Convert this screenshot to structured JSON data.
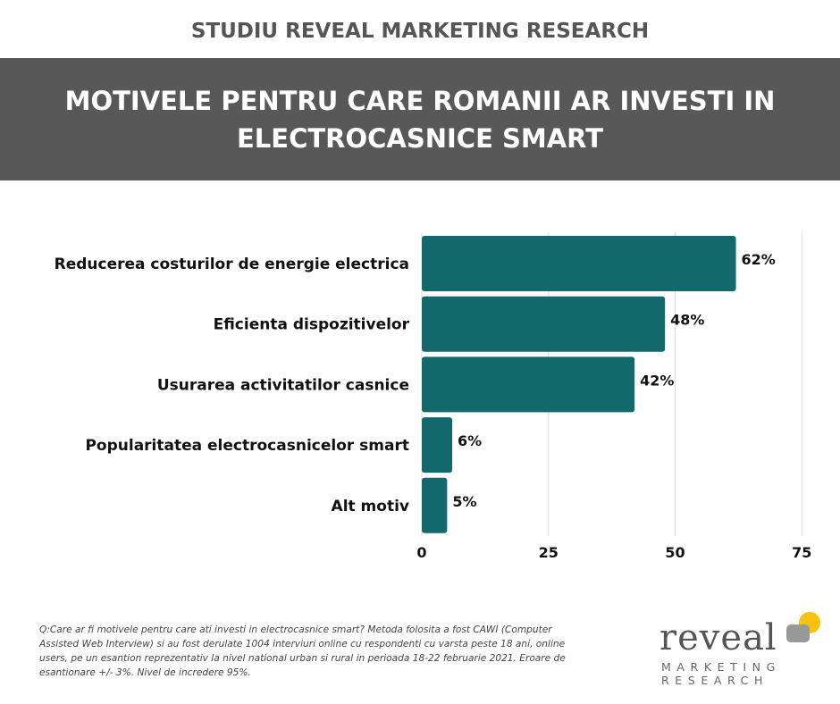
{
  "header": {
    "study_title": "STUDIU REVEAL MARKETING RESEARCH",
    "banner_line1": "MOTIVELE PENTRU CARE ROMANII AR INVESTI IN",
    "banner_line2": "ELECTROCASNICE SMART"
  },
  "colors": {
    "bar": "#12686b",
    "banner_bg": "#585858",
    "grid": "#dddddd",
    "logo_yellow": "#f5c211",
    "logo_gray": "#999999"
  },
  "chart_data": {
    "type": "bar",
    "orientation": "horizontal",
    "categories": [
      "Reducerea costurilor de energie electrica",
      "Eficienta dispozitivelor",
      "Usurarea activitatilor casnice",
      "Popularitatea electrocasnicelor smart",
      "Alt motiv"
    ],
    "values": [
      62,
      48,
      42,
      6,
      5
    ],
    "value_labels": [
      "62%",
      "48%",
      "42%",
      "6%",
      "5%"
    ],
    "x_ticks": [
      "0",
      "25",
      "50",
      "75"
    ],
    "xlim": [
      0,
      75
    ],
    "grid": true
  },
  "footnote": {
    "text": "Q:Care ar fi motivele pentru care ati investi in electrocasnice smart? Metoda folosita a fost CAWI (Computer Assisted Web Interview) si au fost derulate 1004 interviuri online cu respondenti cu varsta peste 18 ani, online users, pe un esantion reprezentativ la nivel national urban si rural in perioada 18-22 februarie 2021. Eroare de esantionare +/- 3%. Nivel de incredere 95%."
  },
  "logo": {
    "word": "reveal",
    "line1": "MARKETING",
    "line2": "RESEARCH"
  }
}
